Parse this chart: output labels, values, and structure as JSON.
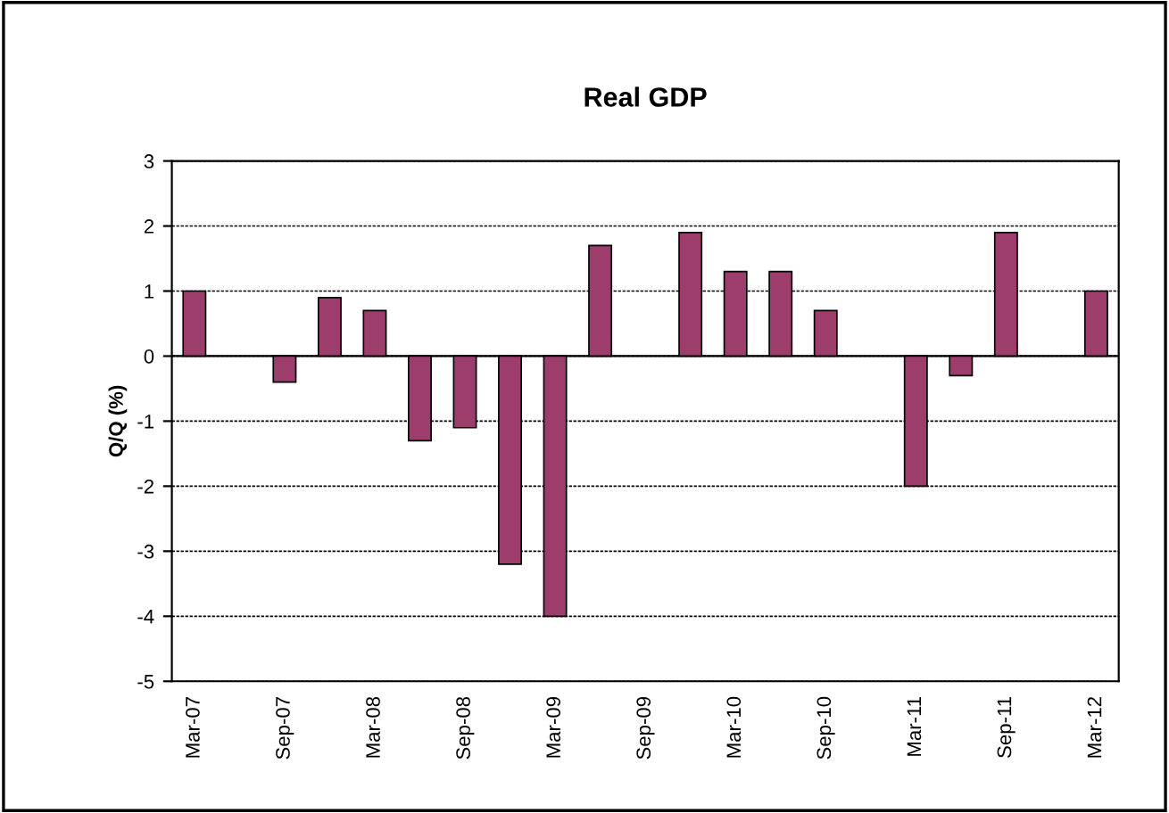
{
  "chart_data": {
    "type": "bar",
    "title": "Real GDP",
    "ylabel": "Q/Q (%)",
    "categories": [
      "Mar-07",
      null,
      "Sep-07",
      null,
      "Mar-08",
      null,
      "Sep-08",
      null,
      "Mar-09",
      null,
      "Sep-09",
      null,
      "Mar-10",
      null,
      "Sep-10",
      null,
      "Mar-11",
      null,
      "Sep-11",
      null,
      "Mar-12"
    ],
    "values": [
      1.0,
      null,
      -0.4,
      0.9,
      0.7,
      -1.3,
      -1.1,
      -3.2,
      -4.0,
      1.7,
      null,
      1.9,
      1.3,
      1.3,
      0.7,
      null,
      -2.0,
      -0.3,
      1.9,
      null,
      1.0
    ],
    "color": "#9c3d6c",
    "ylim": [
      -5,
      3
    ],
    "yticks": [
      -5,
      -4,
      -3,
      -2,
      -1,
      0,
      1,
      2,
      3
    ],
    "grid": "y"
  }
}
